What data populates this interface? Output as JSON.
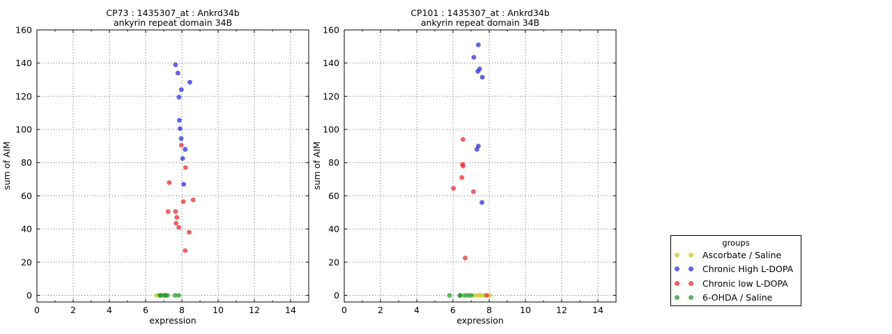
{
  "figure": {
    "background": "#ffffff"
  },
  "legend": {
    "title": "groups",
    "marker_opacity": 0.72,
    "items": [
      {
        "label": "Ascorbate / Saline",
        "color": "#cccc22"
      },
      {
        "label": "Chronic High L-DOPA",
        "color": "#2222ee"
      },
      {
        "label": "Chronic low L-DOPA",
        "color": "#ee2222"
      },
      {
        "label": "6-OHDA / Saline",
        "color": "#229922"
      }
    ]
  },
  "chart_data": [
    {
      "type": "scatter",
      "title_line1": "CP73 : 1435307_at : Ankrd34b",
      "title_line2": "ankyrin repeat domain 34B",
      "xlabel": "expression",
      "ylabel": "sum of AIM",
      "xlim": [
        0,
        15
      ],
      "ylim": [
        -4,
        160
      ],
      "xticks": [
        0,
        2,
        4,
        6,
        8,
        10,
        12,
        14
      ],
      "yticks": [
        0,
        20,
        40,
        60,
        80,
        100,
        120,
        140,
        160
      ],
      "grid": true,
      "series": [
        {
          "name": "Ascorbate / Saline",
          "color": "#cccc22",
          "opacity": 0.72,
          "points": [
            [
              6.6,
              0
            ]
          ]
        },
        {
          "name": "Chronic High L-DOPA",
          "color": "#2222ee",
          "opacity": 0.72,
          "points": [
            [
              7.65,
              139
            ],
            [
              7.78,
              134
            ],
            [
              8.44,
              128.5
            ],
            [
              7.97,
              124
            ],
            [
              7.84,
              119.5
            ],
            [
              7.86,
              105.5
            ],
            [
              7.9,
              100.5
            ],
            [
              7.96,
              94.5
            ],
            [
              8.18,
              88
            ],
            [
              8.04,
              82.5
            ],
            [
              8.1,
              67
            ]
          ]
        },
        {
          "name": "Chronic low L-DOPA",
          "color": "#ee2222",
          "opacity": 0.72,
          "points": [
            [
              7.97,
              90.5
            ],
            [
              8.2,
              77
            ],
            [
              7.3,
              68
            ],
            [
              8.62,
              57.5
            ],
            [
              8.08,
              56.5
            ],
            [
              7.24,
              50.5
            ],
            [
              7.65,
              50.5
            ],
            [
              7.72,
              47
            ],
            [
              7.68,
              43.5
            ],
            [
              7.83,
              41
            ],
            [
              8.4,
              38
            ],
            [
              8.18,
              27
            ]
          ]
        },
        {
          "name": "6-OHDA / Saline",
          "color": "#229922",
          "opacity": 0.72,
          "points": [
            [
              6.78,
              0
            ],
            [
              6.84,
              0
            ],
            [
              7.02,
              0
            ],
            [
              7.1,
              0
            ],
            [
              7.2,
              0
            ],
            [
              7.62,
              0
            ],
            [
              7.83,
              0
            ]
          ]
        }
      ]
    },
    {
      "type": "scatter",
      "title_line1": "CP101 : 1435307_at : Ankrd34b",
      "title_line2": "ankyrin repeat domain 34B",
      "xlabel": "expression",
      "ylabel": "sum of AIM",
      "xlim": [
        0,
        15
      ],
      "ylim": [
        -4,
        160
      ],
      "xticks": [
        0,
        2,
        4,
        6,
        8,
        10,
        12,
        14
      ],
      "yticks": [
        0,
        20,
        40,
        60,
        80,
        100,
        120,
        140,
        160
      ],
      "grid": true,
      "series": [
        {
          "name": "Ascorbate / Saline",
          "color": "#cccc22",
          "opacity": 0.72,
          "points": [
            [
              7.22,
              0
            ],
            [
              7.4,
              0
            ],
            [
              7.52,
              0
            ],
            [
              7.65,
              0
            ],
            [
              8.02,
              0
            ]
          ]
        },
        {
          "name": "Chronic High L-DOPA",
          "color": "#2222ee",
          "opacity": 0.72,
          "points": [
            [
              7.4,
              151
            ],
            [
              7.15,
              143.5
            ],
            [
              7.47,
              136.5
            ],
            [
              7.37,
              135
            ],
            [
              7.62,
              131.5
            ],
            [
              7.4,
              90
            ],
            [
              7.32,
              88
            ],
            [
              7.6,
              56
            ]
          ]
        },
        {
          "name": "Chronic low L-DOPA",
          "color": "#ee2222",
          "opacity": 0.72,
          "points": [
            [
              6.55,
              94
            ],
            [
              6.52,
              79
            ],
            [
              6.56,
              78
            ],
            [
              6.49,
              71
            ],
            [
              6.03,
              64.5
            ],
            [
              7.13,
              62.5
            ],
            [
              6.67,
              22.5
            ],
            [
              7.85,
              0
            ]
          ]
        },
        {
          "name": "6-OHDA / Saline",
          "color": "#229922",
          "opacity": 0.72,
          "points": [
            [
              5.81,
              0
            ],
            [
              6.38,
              0
            ],
            [
              6.41,
              0
            ],
            [
              6.65,
              0
            ],
            [
              6.85,
              0
            ],
            [
              7.02,
              0
            ]
          ]
        }
      ]
    }
  ]
}
